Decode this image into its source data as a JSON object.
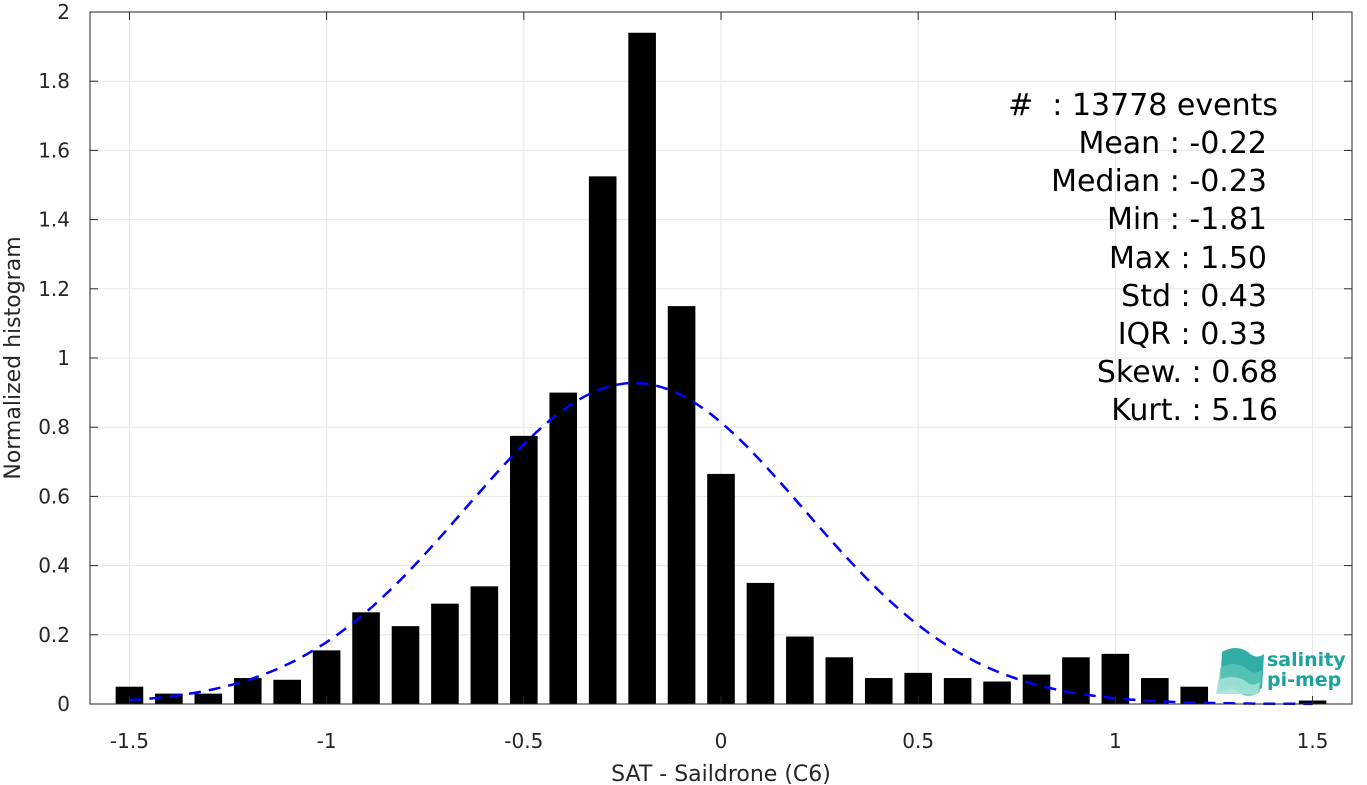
{
  "chart_data": {
    "type": "bar",
    "xlabel": "SAT - Saildrone (C6)",
    "ylabel": "Normalized histogram",
    "xlim": [
      -1.6,
      1.6
    ],
    "ylim": [
      0,
      2
    ],
    "xticks": [
      -1.5,
      -1,
      -0.5,
      0,
      0.5,
      1,
      1.5
    ],
    "xtick_labels": [
      "-1.5",
      "-1",
      "-0.5",
      "0",
      "0.5",
      "1",
      "1.5"
    ],
    "yticks": [
      0,
      0.2,
      0.4,
      0.6,
      0.8,
      1,
      1.2,
      1.4,
      1.6,
      1.8,
      2
    ],
    "ytick_labels": [
      "0",
      "0.2",
      "0.4",
      "0.6",
      "0.8",
      "1",
      "1.2",
      "1.4",
      "1.6",
      "1.8",
      "2"
    ],
    "grid": true,
    "bin_width": 0.07,
    "bars": {
      "color": "#000000",
      "x": [
        -1.5,
        -1.4,
        -1.3,
        -1.2,
        -1.1,
        -1.0,
        -0.9,
        -0.8,
        -0.7,
        -0.6,
        -0.5,
        -0.4,
        -0.3,
        -0.2,
        -0.1,
        0.0,
        0.1,
        0.2,
        0.3,
        0.4,
        0.5,
        0.6,
        0.7,
        0.8,
        0.9,
        1.0,
        1.1,
        1.2,
        1.5
      ],
      "values": [
        0.05,
        0.03,
        0.03,
        0.075,
        0.07,
        0.155,
        0.265,
        0.225,
        0.29,
        0.34,
        0.775,
        0.9,
        1.525,
        1.94,
        1.15,
        0.665,
        0.35,
        0.195,
        0.135,
        0.075,
        0.09,
        0.075,
        0.065,
        0.085,
        0.135,
        0.145,
        0.075,
        0.05,
        0.01
      ]
    },
    "fit_curve": {
      "style": "dashed",
      "color": "#0000ff",
      "mean": -0.22,
      "std": 0.43
    },
    "annotation": {
      "count_line": "#  : 13778 events",
      "mean_line": "Mean : -0.22",
      "median_line": "Median : -0.23",
      "min_line": "Min : -1.81",
      "max_line": "Max : 1.50",
      "std_line": "Std : 0.43",
      "iqr_line": "IQR : 0.33",
      "skew_line": "Skew. : 0.68",
      "kurt_line": "Kurt. : 5.16"
    }
  },
  "logo": {
    "line1": "salinity",
    "line2": "pi-mep",
    "color": "#1ba39c"
  }
}
